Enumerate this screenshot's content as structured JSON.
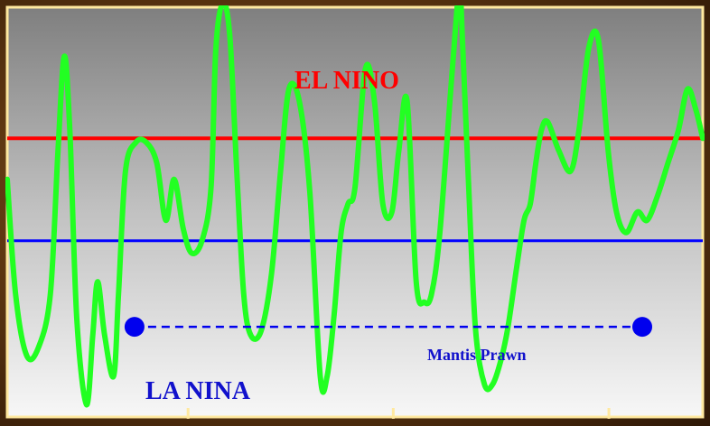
{
  "chart_data": {
    "type": "line",
    "title": "",
    "xlabel": "",
    "ylabel": "",
    "grid": false,
    "xlim": [
      0,
      100
    ],
    "ylim": [
      0,
      100
    ],
    "series": [
      {
        "color": "#22ff22",
        "x": [
          0,
          1.2,
          2.8,
          4.5,
          6.2,
          7.3,
          8.2,
          9.0,
          10.0,
          11.4,
          12.3,
          13.0,
          14.0,
          15.3,
          16.0,
          17.0,
          18.5,
          20.0,
          21.5,
          22.8,
          24.0,
          25.3,
          26.5,
          28.0,
          29.3,
          30.0,
          31.0,
          32.0,
          33.0,
          34.0,
          35.0,
          36.5,
          38.0,
          39.3,
          40.5,
          42.0,
          43.5,
          45.0,
          46.0,
          47.0,
          48.0,
          49.0,
          50.0,
          51.5,
          52.8,
          54.0,
          55.3,
          56.3,
          57.5,
          58.8,
          60.0,
          61.0,
          62.2,
          64.0,
          65.0,
          65.5,
          66.3,
          67.3,
          68.6,
          69.8,
          71.0,
          72.0,
          73.2,
          74.3,
          75.2,
          76.0,
          76.8,
          77.7,
          79.3,
          81.0,
          82.2,
          83.6,
          85.0,
          86.4,
          87.6,
          89.0,
          90.6,
          92.0,
          93.5,
          95.0,
          96.5,
          97.8,
          99.0,
          100
        ],
        "y": [
          58,
          30,
          15,
          17,
          30,
          65,
          88,
          70,
          24,
          3,
          20,
          33,
          20,
          10,
          30,
          60,
          67,
          67,
          62,
          48,
          58,
          46,
          40,
          43,
          56,
          90,
          101,
          93,
          60,
          30,
          20,
          21,
          35,
          60,
          80,
          77,
          55,
          10,
          10,
          25,
          45,
          52,
          56,
          85,
          77,
          52,
          50,
          65,
          77,
          33,
          28,
          30,
          45,
          85,
          104,
          90,
          58,
          22,
          8,
          8,
          14,
          22,
          36,
          48,
          52,
          62,
          70,
          72,
          65,
          60,
          70,
          90,
          92,
          65,
          50,
          45,
          50,
          48,
          54,
          62,
          70,
          80,
          75,
          68
        ]
      }
    ],
    "thresholds": [
      {
        "name": "EL NINO",
        "y": 68,
        "color": "#ff0000"
      },
      {
        "name": "LA NINA",
        "y": 43,
        "color": "#0000ff"
      }
    ],
    "connector": {
      "x1": 18.3,
      "x2": 91.3,
      "y": 22,
      "color": "#0000ee",
      "style": "dashed"
    },
    "annotations": [
      {
        "text": "EL NINO",
        "color": "#ff0000"
      },
      {
        "text": "LA NINA",
        "color": "#1111cc"
      },
      {
        "text": "Mantis Prawn",
        "color": "#1111cc"
      }
    ],
    "xticks": [
      26,
      55.5,
      86.5
    ],
    "background_gradient": [
      "#808080",
      "#bdbdbd",
      "#f6f6f6"
    ],
    "frame_color": "#ffe9a0"
  }
}
